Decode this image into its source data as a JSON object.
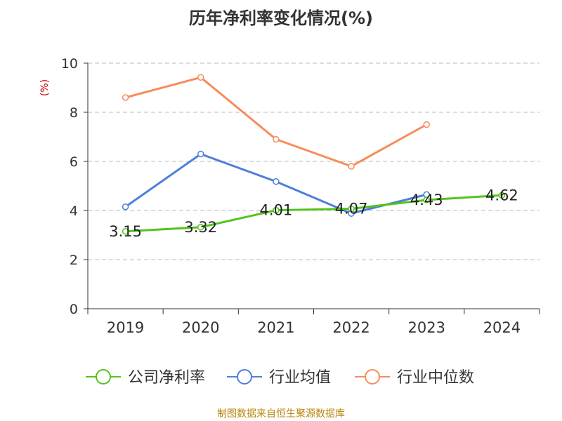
{
  "chart_data": {
    "type": "line",
    "title": "历年净利率变化情况(%)",
    "ylabel": "(%)",
    "xlabel": "",
    "categories": [
      "2019",
      "2020",
      "2021",
      "2022",
      "2023",
      "2024"
    ],
    "y_ticks": [
      "0",
      "2",
      "4",
      "6",
      "8",
      "10"
    ],
    "ylim": [
      0,
      10
    ],
    "grid": "horizontal dashed",
    "legend": "bottom",
    "series": [
      {
        "name": "公司净利率",
        "color": "#52c41a",
        "values": [
          3.15,
          3.32,
          4.01,
          4.07,
          4.43,
          4.62
        ],
        "labels": [
          "3.15",
          "3.32",
          "4.01",
          "4.07",
          "4.43",
          "4.62"
        ]
      },
      {
        "name": "行业均值",
        "color": "#4e7fdc",
        "values": [
          4.15,
          6.3,
          5.18,
          3.88,
          4.65,
          null
        ]
      },
      {
        "name": "行业中位数",
        "color": "#f78c5a",
        "values": [
          8.6,
          9.42,
          6.9,
          5.8,
          7.5,
          null
        ]
      }
    ]
  },
  "source": "制图数据来自恒生聚源数据库",
  "colors": {
    "axis": "#333333",
    "grid": "#bbbbbb",
    "ylabel": "#cc0000",
    "source": "#b8860b"
  }
}
